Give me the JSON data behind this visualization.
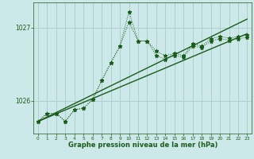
{
  "bg_color": "#cce8e8",
  "grid_color": "#aacccc",
  "line_color": "#1a5c1a",
  "xlabel": "Graphe pression niveau de la mer (hPa)",
  "ylabel_ticks": [
    1026,
    1027
  ],
  "xlim": [
    -0.5,
    23.5
  ],
  "ylim": [
    1025.55,
    1027.35
  ],
  "x_ticks": [
    0,
    1,
    2,
    3,
    4,
    5,
    6,
    7,
    8,
    9,
    10,
    11,
    12,
    13,
    14,
    15,
    16,
    17,
    18,
    19,
    20,
    21,
    22,
    23
  ],
  "trend1_x": [
    0,
    23
  ],
  "trend1_y": [
    1025.72,
    1026.92
  ],
  "trend2_x": [
    0,
    23
  ],
  "trend2_y": [
    1025.72,
    1027.12
  ],
  "jagged1_x": [
    0,
    1,
    2,
    3,
    4,
    5,
    6,
    7,
    8,
    9,
    10,
    11,
    12,
    13,
    14,
    15,
    16,
    17,
    18,
    19,
    20,
    21,
    22,
    23
  ],
  "jagged1_y": [
    1025.72,
    1025.83,
    1025.83,
    1025.72,
    1025.88,
    1025.9,
    1026.02,
    1026.28,
    1026.52,
    1026.75,
    1027.22,
    1026.82,
    1026.82,
    1026.62,
    1026.57,
    1026.62,
    1026.6,
    1026.75,
    1026.73,
    1026.82,
    1026.85,
    1026.83,
    1026.85,
    1026.87
  ],
  "jagged2_x": [
    0,
    1,
    2,
    3,
    4,
    5,
    6,
    7,
    8,
    9,
    10,
    11,
    12,
    13,
    14,
    15,
    16,
    17,
    18,
    19,
    20,
    21,
    22,
    23
  ],
  "jagged2_y": [
    1025.72,
    1025.83,
    1025.83,
    1025.72,
    1025.88,
    1025.9,
    1026.02,
    1026.28,
    1026.52,
    1026.75,
    1027.08,
    1026.82,
    1026.82,
    1026.68,
    1026.62,
    1026.65,
    1026.62,
    1026.78,
    1026.75,
    1026.85,
    1026.88,
    1026.86,
    1026.88,
    1026.9
  ]
}
